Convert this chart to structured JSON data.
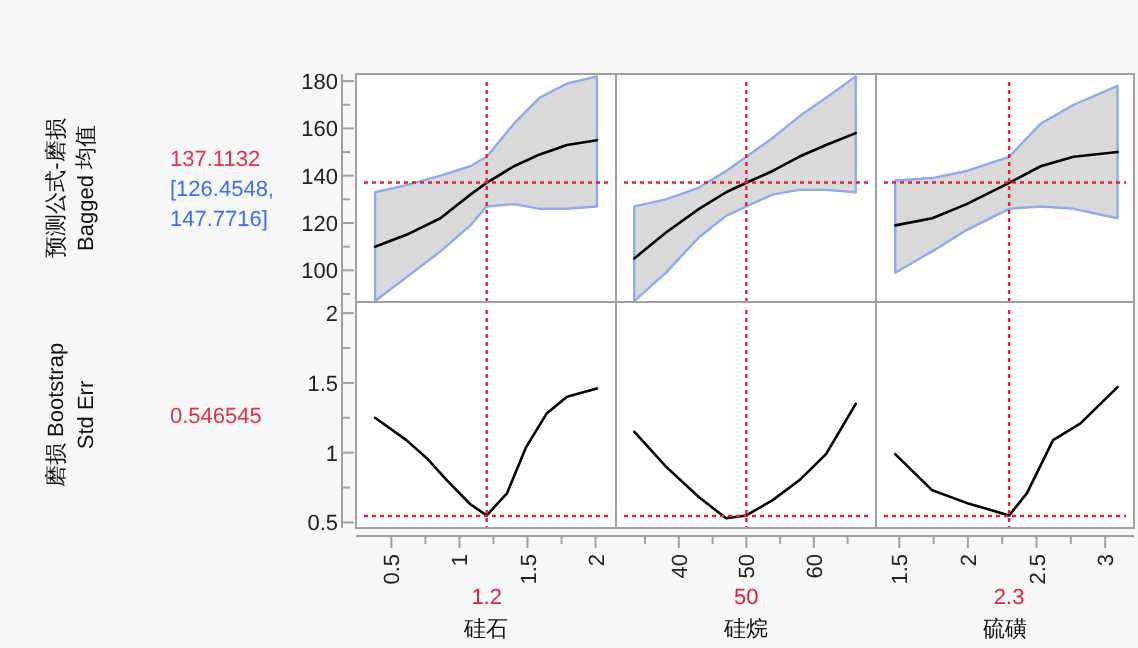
{
  "chart_data": [
    {
      "type": "line",
      "ylabel": "预测公式-磨损 Bagged 均值",
      "annotations": [
        "137.1132",
        "[126.4548, 147.7716]"
      ],
      "x": [
        0.38,
        0.61,
        0.86,
        1.08,
        1.2,
        1.4,
        1.59,
        1.79,
        2.01
      ],
      "series": [
        {
          "color": "#000000",
          "values": [
            110,
            115,
            122,
            132,
            137,
            144,
            149,
            153,
            155
          ],
          "lower": [
            87,
            97,
            108,
            119,
            127,
            128,
            126,
            126,
            127
          ],
          "upper": [
            133,
            136,
            140,
            144,
            148,
            162,
            173,
            179,
            182
          ]
        }
      ],
      "xlim": [
        0.24,
        2.15
      ],
      "ylim": [
        86.6,
        183
      ],
      "yticks": [
        {
          "value": 90,
          "label": null
        },
        100,
        {
          "value": 110,
          "label": null
        },
        120,
        {
          "value": 130,
          "label": null
        },
        140,
        {
          "value": 150,
          "label": null
        },
        160,
        {
          "value": 170,
          "label": null
        },
        180
      ],
      "ref_lines": [
        {
          "axis": "x",
          "value": 1.2,
          "color": "#e0203a",
          "line_style": "dotted"
        },
        {
          "axis": "y",
          "value": 137.1132,
          "color": "#e0203a",
          "line_style": "dotted"
        }
      ],
      "tick_labels": "y"
    },
    {
      "type": "line",
      "x": [
        33.4,
        38.1,
        43.0,
        47.0,
        50.0,
        53.9,
        57.8,
        61.8,
        66.2
      ],
      "series": [
        {
          "color": "#000000",
          "values": [
            105,
            116,
            126,
            133,
            137,
            142,
            148,
            153,
            158
          ],
          "lower": [
            87,
            99,
            114,
            123,
            127,
            132,
            134,
            134,
            133
          ],
          "upper": [
            127,
            130,
            135,
            142,
            148,
            156,
            165,
            173,
            182
          ]
        }
      ],
      "xlim": [
        30.7,
        69.2
      ],
      "ylim": [
        86.6,
        183
      ],
      "ref_lines": [
        {
          "axis": "x",
          "value": 50,
          "color": "#e0203a",
          "line_style": "dotted"
        },
        {
          "axis": "y",
          "value": 137.1132,
          "color": "#e0203a",
          "line_style": "dotted"
        }
      ],
      "tick_labels": false
    },
    {
      "type": "line",
      "x": [
        1.47,
        1.74,
        1.99,
        2.3,
        2.53,
        2.77,
        3.09
      ],
      "series": [
        {
          "color": "#000000",
          "values": [
            119,
            122,
            128,
            137,
            144,
            148,
            150
          ],
          "lower": [
            99,
            108,
            117,
            126,
            127,
            126,
            122
          ],
          "upper": [
            138,
            139,
            142,
            148,
            162,
            170,
            178
          ]
        }
      ],
      "xlim": [
        1.33,
        3.21
      ],
      "ylim": [
        86.6,
        183
      ],
      "ref_lines": [
        {
          "axis": "x",
          "value": 2.3,
          "color": "#e0203a",
          "line_style": "dotted"
        },
        {
          "axis": "y",
          "value": 137.1132,
          "color": "#e0203a",
          "line_style": "dotted"
        }
      ],
      "tick_labels": false
    },
    {
      "type": "line",
      "ylabel": "磨损 Bootstrap Std Err",
      "xlabel": "硅石",
      "annotations": [
        "0.546545"
      ],
      "x": [
        0.38,
        0.61,
        0.76,
        0.91,
        1.08,
        1.2,
        1.35,
        1.49,
        1.64,
        1.79,
        2.01
      ],
      "series": [
        {
          "color": "#000000",
          "values": [
            1.25,
            1.09,
            0.96,
            0.8,
            0.63,
            0.55,
            0.71,
            1.04,
            1.28,
            1.4,
            1.46
          ]
        }
      ],
      "xlim": [
        0.24,
        2.15
      ],
      "xticks": [
        0.5,
        {
          "value": 0.75,
          "label": null
        },
        1,
        {
          "value": 1.25,
          "label": null
        },
        1.5,
        {
          "value": 1.75,
          "label": null
        },
        2
      ],
      "ylim": [
        0.46,
        2.08
      ],
      "yticks": [
        0.5,
        {
          "value": 0.75,
          "label": null
        },
        1,
        {
          "value": 1.25,
          "label": null
        },
        1.5,
        {
          "value": 1.75,
          "label": null
        },
        2
      ],
      "ref_lines": [
        {
          "axis": "x",
          "value": 1.2,
          "label": "1.2",
          "color": "#e0203a",
          "line_style": "dotted"
        },
        {
          "axis": "y",
          "value": 0.546545,
          "color": "#e0203a",
          "line_style": "dotted"
        }
      ]
    },
    {
      "type": "line",
      "xlabel": "硅烷",
      "x": [
        33.4,
        38.1,
        43.0,
        47.0,
        50.0,
        53.9,
        57.8,
        61.8,
        66.2
      ],
      "series": [
        {
          "color": "#000000",
          "values": [
            1.15,
            0.9,
            0.68,
            0.53,
            0.55,
            0.66,
            0.8,
            0.99,
            1.35
          ]
        }
      ],
      "xlim": [
        30.7,
        69.2
      ],
      "xticks": [
        {
          "value": 35,
          "label": null
        },
        40,
        {
          "value": 45,
          "label": null
        },
        50,
        {
          "value": 55,
          "label": null
        },
        60,
        {
          "value": 65,
          "label": null
        }
      ],
      "ylim": [
        0.46,
        2.08
      ],
      "ref_lines": [
        {
          "axis": "x",
          "value": 50,
          "label": "50",
          "color": "#e0203a",
          "line_style": "dotted"
        },
        {
          "axis": "y",
          "value": 0.546545,
          "color": "#e0203a",
          "line_style": "dotted"
        }
      ],
      "tick_labels": "x"
    },
    {
      "type": "line",
      "xlabel": "硫磺",
      "x": [
        1.47,
        1.74,
        1.99,
        2.3,
        2.43,
        2.62,
        2.82,
        3.09
      ],
      "series": [
        {
          "color": "#000000",
          "values": [
            0.99,
            0.73,
            0.64,
            0.55,
            0.71,
            1.09,
            1.21,
            1.47
          ]
        }
      ],
      "xlim": [
        1.33,
        3.21
      ],
      "xticks": [
        1.5,
        {
          "value": 1.75,
          "label": null
        },
        2,
        {
          "value": 2.25,
          "label": null
        },
        2.5,
        {
          "value": 2.75,
          "label": null
        },
        3
      ],
      "ylim": [
        0.46,
        2.08
      ],
      "ref_lines": [
        {
          "axis": "x",
          "value": 2.3,
          "label": "2.3",
          "color": "#e0203a",
          "line_style": "dotted"
        },
        {
          "axis": "y",
          "value": 0.546545,
          "color": "#e0203a",
          "line_style": "dotted"
        }
      ],
      "tick_labels": "x"
    }
  ]
}
